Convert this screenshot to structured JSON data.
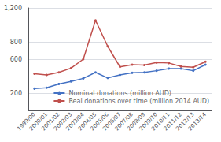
{
  "chart_data": {
    "type": "line",
    "categories": [
      "1999/00",
      "2000/01",
      "2001/02",
      "2002/03",
      "2003/04",
      "2004/05",
      "2005/06",
      "2006/07",
      "2007/08",
      "2008/09",
      "2009/10",
      "2010/11",
      "2011/12",
      "2012/13",
      "2013/14"
    ],
    "series": [
      {
        "name": "Nominal donations (million AUD)",
        "color": "#4472C4",
        "values": [
          255,
          265,
          310,
          340,
          375,
          445,
          380,
          415,
          440,
          445,
          465,
          490,
          490,
          465,
          535
        ]
      },
      {
        "name": "Real donations over time (million 2014 AUD)",
        "color": "#C0504D",
        "values": [
          430,
          415,
          445,
          495,
          600,
          1055,
          750,
          510,
          535,
          530,
          560,
          555,
          515,
          505,
          570
        ]
      }
    ],
    "ylim": [
      0,
      1200
    ],
    "yticks": [
      200,
      600,
      800,
      {
        "value": 1200,
        "label": "1,200"
      }
    ],
    "grid": true,
    "legend": "lower right",
    "marker": "circle"
  }
}
